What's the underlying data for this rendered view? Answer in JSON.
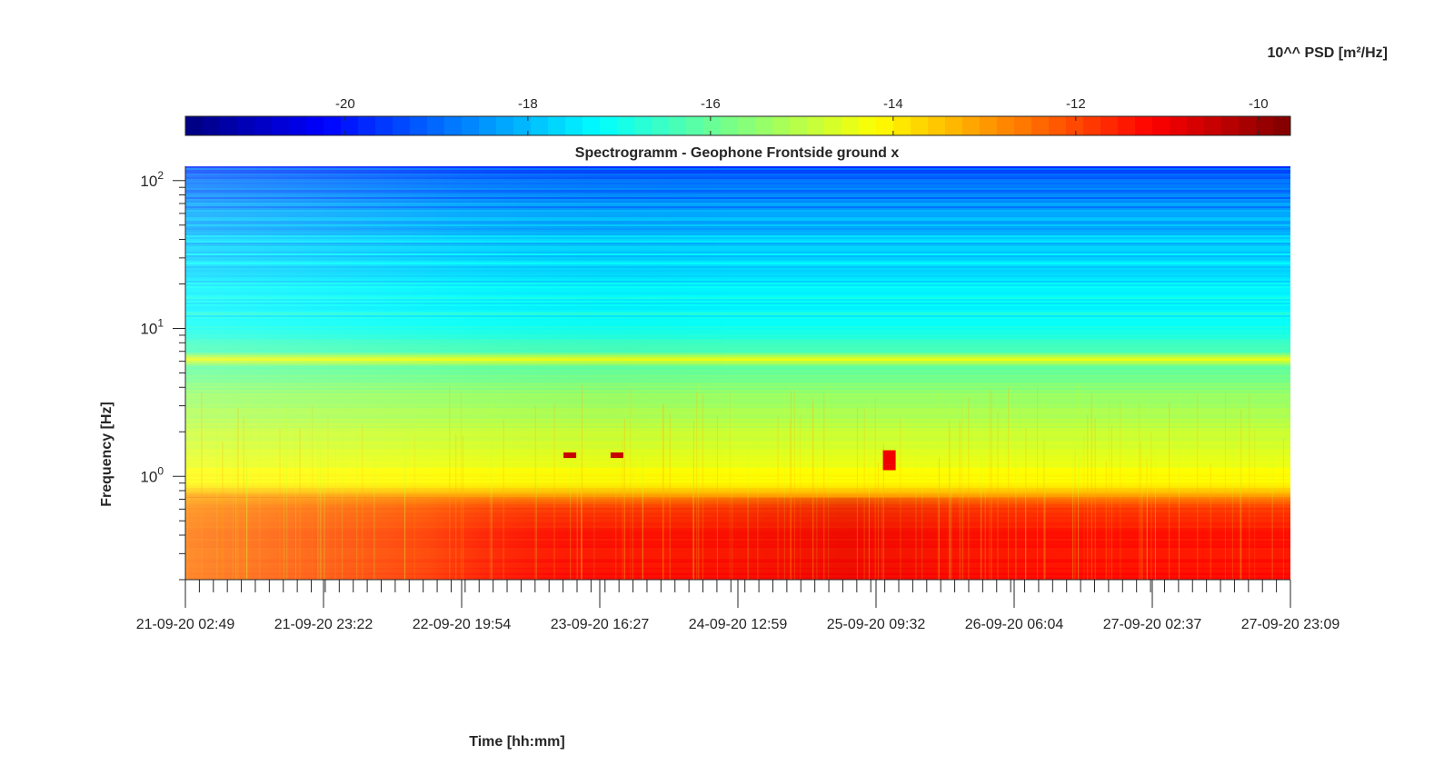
{
  "chart_data": {
    "type": "heatmap",
    "title": "Spectrogramm - Geophone Frontside ground x",
    "xlabel": "Time [hh:mm]",
    "ylabel": "Frequency [Hz]",
    "colorbar": {
      "label": "10^^ PSD [m²/Hz]",
      "range": [
        -21.75,
        -9.65
      ],
      "ticks": [
        -20,
        -18,
        -16,
        -14,
        -12,
        -10
      ],
      "tick_labels": [
        "-20",
        "-18",
        "-16",
        "-14",
        "-12",
        "-10"
      ],
      "colormap": "jet",
      "location": "top"
    },
    "x_ticks": [
      "21-09-20 02:49",
      "21-09-20 23:22",
      "22-09-20 19:54",
      "23-09-20 16:27",
      "24-09-20 12:59",
      "25-09-20 09:32",
      "26-09-20 06:04",
      "27-09-20 02:37",
      "27-09-20 23:09"
    ],
    "y_scale": "log",
    "y_range": [
      0.2,
      125
    ],
    "y_ticks": [
      {
        "value": 1,
        "base": "10",
        "exp": "0"
      },
      {
        "value": 10,
        "base": "10",
        "exp": "1"
      },
      {
        "value": 100,
        "base": "10",
        "exp": "2"
      }
    ],
    "psd_profile_by_frequency": [
      {
        "f": 0.2,
        "psd": -11.3
      },
      {
        "f": 0.4,
        "psd": -11.4
      },
      {
        "f": 0.6,
        "psd": -11.8
      },
      {
        "f": 0.7,
        "psd": -12.6
      },
      {
        "f": 0.85,
        "psd": -14.0
      },
      {
        "f": 1.2,
        "psd": -14.4
      },
      {
        "f": 2.0,
        "psd": -14.9
      },
      {
        "f": 3.5,
        "psd": -15.4
      },
      {
        "f": 5.5,
        "psd": -16.1
      },
      {
        "f": 6.2,
        "psd": -14.3
      },
      {
        "f": 7.0,
        "psd": -16.4
      },
      {
        "f": 10,
        "psd": -17.0
      },
      {
        "f": 20,
        "psd": -17.5
      },
      {
        "f": 35,
        "psd": -17.7
      },
      {
        "f": 60,
        "psd": -18.4
      },
      {
        "f": 125,
        "psd": -19.3
      }
    ],
    "events": [
      {
        "time": "23-09-20 12:00",
        "f_low": 1.33,
        "f_high": 1.45,
        "psd": -10.5
      },
      {
        "time": "23-09-20 19:00",
        "f_low": 1.33,
        "f_high": 1.45,
        "psd": -10.5
      },
      {
        "time": "25-09-20 11:30",
        "f_low": 1.1,
        "f_high": 1.5,
        "psd": -11.0
      }
    ]
  }
}
